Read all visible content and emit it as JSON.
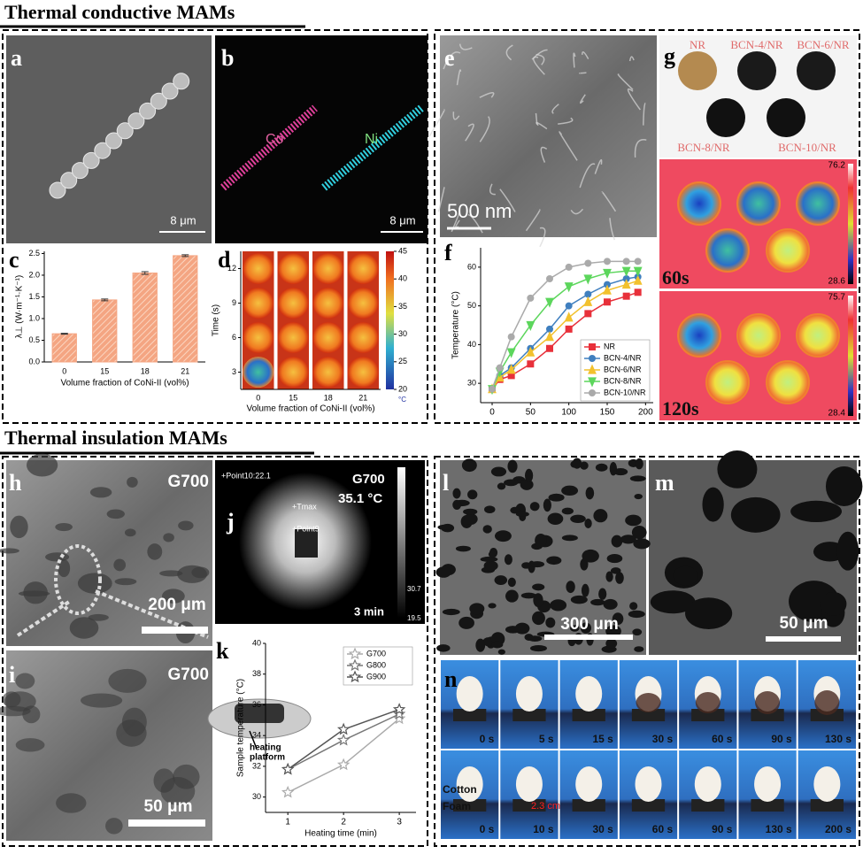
{
  "sections": [
    "Thermal conductive MAMs",
    "Thermal insulation MAMs"
  ],
  "panels": {
    "a": {
      "letter": "a",
      "scale": "8 μm"
    },
    "b": {
      "letter": "b",
      "co": "Co",
      "ni": "Ni",
      "scale": "8 μm"
    },
    "c": {
      "letter": "c"
    },
    "d": {
      "letter": "d"
    },
    "e": {
      "letter": "e",
      "scale": "500 nm"
    },
    "f": {
      "letter": "f"
    },
    "g": {
      "letter": "g",
      "samples": [
        "NR",
        "BCN-4/NR",
        "BCN-6/NR",
        "BCN-8/NR",
        "BCN-10/NR"
      ],
      "frames": [
        {
          "time": "60s",
          "max": "76.2",
          "min": "28.6"
        },
        {
          "time": "120s",
          "max": "75.7",
          "min": "28.4"
        }
      ]
    },
    "h": {
      "letter": "h",
      "sample": "G700",
      "scale": "200 μm"
    },
    "i": {
      "letter": "i",
      "sample": "G700",
      "scale": "50 μm"
    },
    "j": {
      "letter": "j",
      "sample": "G700",
      "temp": "35.1 °C",
      "points": [
        "+Point10:22.1",
        "+Tmax",
        "+Point9"
      ],
      "time": "3 min",
      "scale": [
        "70.0",
        "30.7",
        "19.5"
      ]
    },
    "k": {
      "letter": "k"
    },
    "l": {
      "letter": "l",
      "scale": "300 μm"
    },
    "m": {
      "letter": "m",
      "scale": "50 μm"
    },
    "n": {
      "letter": "n",
      "times_top": [
        "0 s",
        "5 s",
        "15 s",
        "30 s",
        "60 s",
        "90 s",
        "130 s"
      ],
      "times_bottom": [
        "0 s",
        "10 s",
        "30 s",
        "60 s",
        "90 s",
        "130 s",
        "200 s"
      ],
      "cotton": "Cotton",
      "foam": "Foam",
      "gap": "2.3 cm"
    }
  },
  "chart_data": [
    {
      "type": "bar",
      "categories": [
        "0",
        "15",
        "18",
        "21"
      ],
      "values": [
        0.65,
        1.43,
        2.05,
        2.45
      ],
      "errors": [
        0.01,
        0.02,
        0.03,
        0.02
      ],
      "color": "#f4a582",
      "ylim": [
        0,
        2.55
      ],
      "yticks": [
        {
          "value": 0,
          "label": "0.0"
        },
        {
          "value": 0.5,
          "label": "0.5"
        },
        {
          "value": 1,
          "label": "1.0"
        },
        {
          "value": 1.5,
          "label": "1.5"
        },
        {
          "value": 2,
          "label": "2.0"
        },
        {
          "value": 2.5,
          "label": "2.5"
        }
      ],
      "ylabel": "λ⊥ (W·m⁻¹·K⁻¹)",
      "xlabel": "Volume fraction of CoNi-II (vol%)"
    },
    {
      "type": "thermal-grid",
      "categories": [
        "0",
        "15",
        "18",
        "21"
      ],
      "ylim": [
        1.5,
        13.5
      ],
      "yticks": [
        3,
        6,
        9,
        12
      ],
      "ylabel": "Time (s)",
      "xlabel": "Volume fraction of CoNi-II (vol%)",
      "colorbar_lim": [
        20,
        45
      ],
      "colorbar_ticks": [
        20,
        25,
        30,
        35,
        40,
        45
      ],
      "colorbar_unit": "°C"
    },
    {
      "type": "line",
      "x": [
        0,
        10,
        25,
        50,
        75,
        100,
        125,
        150,
        175,
        190
      ],
      "xlim": [
        -15,
        210
      ],
      "xticks": [
        0,
        50,
        100,
        150,
        200
      ],
      "ylim": [
        25,
        65
      ],
      "yticks": [
        30,
        40,
        50,
        60
      ],
      "ylabel": "Temperature (°C)",
      "legend": "lower right",
      "series": [
        {
          "name": "NR",
          "color": "#e8303a",
          "marker": "square",
          "values": [
            28.5,
            31,
            32,
            35,
            39,
            44,
            48,
            51,
            52.5,
            53.5
          ]
        },
        {
          "name": "BCN-4/NR",
          "color": "#3f7fbf",
          "marker": "circle",
          "values": [
            28.5,
            32,
            34,
            39,
            44,
            50,
            53,
            55.5,
            57,
            57.5
          ]
        },
        {
          "name": "BCN-6/NR",
          "color": "#f2c12e",
          "marker": "triangle",
          "values": [
            28.5,
            31.5,
            33.5,
            38,
            42,
            47,
            51,
            54,
            55.5,
            56.5
          ]
        },
        {
          "name": "BCN-8/NR",
          "color": "#5cd65c",
          "marker": "triangle-down",
          "values": [
            28.5,
            33,
            38,
            45,
            51,
            55,
            57,
            58.5,
            59,
            59
          ]
        },
        {
          "name": "BCN-10/NR",
          "color": "#aaaaaa",
          "marker": "circle",
          "values": [
            28.5,
            34,
            42,
            52,
            57,
            60,
            61,
            61.5,
            61.5,
            61.5
          ]
        }
      ]
    },
    {
      "type": "line",
      "x": [
        1,
        2,
        3
      ],
      "xlim": [
        0.6,
        3.3
      ],
      "xticks": [
        1,
        2,
        3
      ],
      "ylim": [
        29,
        40
      ],
      "yticks": [
        30,
        32,
        34,
        36,
        38,
        40
      ],
      "ylabel": "Sample temperature (°C)",
      "xlabel": "Heating time (min)",
      "legend": "upper right",
      "annotation": [
        "heating",
        "platform"
      ],
      "series": [
        {
          "name": "G700",
          "color": "#aaaaaa",
          "marker": "star",
          "values": [
            30.3,
            32.1,
            35.1
          ]
        },
        {
          "name": "G800",
          "color": "#777777",
          "marker": "star",
          "values": [
            31.8,
            33.7,
            35.4
          ]
        },
        {
          "name": "G900",
          "color": "#555555",
          "marker": "star",
          "values": [
            31.8,
            34.4,
            35.7
          ]
        }
      ]
    }
  ]
}
